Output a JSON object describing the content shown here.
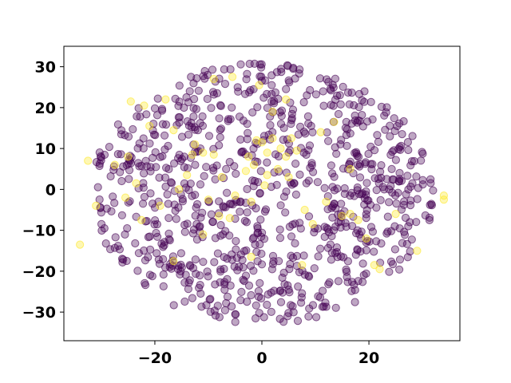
{
  "chart_data": {
    "type": "scatter",
    "title": "",
    "xlabel": "",
    "ylabel": "",
    "xlim": [
      -37,
      37
    ],
    "ylim": [
      -37,
      35
    ],
    "x_ticks": [
      -20,
      0,
      20
    ],
    "x_tick_labels": [
      "−20",
      "0",
      "20"
    ],
    "y_ticks": [
      -30,
      -20,
      -10,
      0,
      10,
      20,
      30
    ],
    "y_tick_labels": [
      "−30",
      "−20",
      "−10",
      "0",
      "10",
      "20",
      "30"
    ],
    "grid": false,
    "legend": "none",
    "colors": {
      "majority": "#440154",
      "minority": "#fde725"
    },
    "marker_opacity": 0.35,
    "series": [
      {
        "color": "#fde725",
        "points": [
          [
            -34.0,
            -13.5
          ],
          [
            -32.5,
            7.0
          ],
          [
            -31.0,
            -4.0
          ],
          [
            -27.5,
            6.0
          ],
          [
            -25.5,
            -2.0
          ],
          [
            -24.5,
            21.5
          ],
          [
            -22.0,
            20.5
          ],
          [
            -21.0,
            15.5
          ],
          [
            -23.5,
            1.5
          ],
          [
            -22.5,
            -7.5
          ],
          [
            -19.0,
            -4.0
          ],
          [
            -16.5,
            14.5
          ],
          [
            -14.0,
            3.5
          ],
          [
            -13.0,
            8.5
          ],
          [
            -11.0,
            9.0
          ],
          [
            -9.0,
            8.5
          ],
          [
            -10.0,
            -2.5
          ],
          [
            -8.0,
            -6.5
          ],
          [
            -6.0,
            -7.0
          ],
          [
            -7.5,
            3.0
          ],
          [
            -5.0,
            -1.5
          ],
          [
            -3.0,
            4.5
          ],
          [
            -2.5,
            8.0
          ],
          [
            -1.0,
            12.0
          ],
          [
            0.0,
            11.5
          ],
          [
            1.0,
            9.0
          ],
          [
            2.0,
            12.5
          ],
          [
            3.5,
            10.0
          ],
          [
            4.5,
            8.0
          ],
          [
            5.5,
            12.5
          ],
          [
            6.5,
            9.5
          ],
          [
            3.0,
            5.0
          ],
          [
            1.0,
            3.5
          ],
          [
            -1.5,
            6.0
          ],
          [
            0.5,
            1.0
          ],
          [
            8.0,
            -5.0
          ],
          [
            11.0,
            14.0
          ],
          [
            13.5,
            16.5
          ],
          [
            12.0,
            -3.0
          ],
          [
            15.0,
            -6.5
          ],
          [
            16.5,
            -6.0
          ],
          [
            18.0,
            -7.5
          ],
          [
            19.5,
            -12.0
          ],
          [
            16.5,
            5.0
          ],
          [
            21.0,
            -18.5
          ],
          [
            22.0,
            -19.5
          ],
          [
            25.0,
            -6.0
          ],
          [
            29.0,
            -15.0
          ],
          [
            34.0,
            -1.5
          ],
          [
            34.0,
            -2.5
          ],
          [
            -12.5,
            11.0
          ],
          [
            -16.5,
            -17.5
          ],
          [
            -11.0,
            -11.0
          ],
          [
            -2.0,
            -16.5
          ],
          [
            4.5,
            22.0
          ],
          [
            -9.0,
            27.0
          ],
          [
            -5.5,
            27.5
          ],
          [
            2.0,
            19.0
          ],
          [
            -0.5,
            25.5
          ],
          [
            7.5,
            -18.5
          ],
          [
            -25.0,
            8.0
          ],
          [
            -18.0,
            22.0
          ],
          [
            9.5,
            -8.5
          ],
          [
            -2.0,
            -3.0
          ],
          [
            5.0,
            3.0
          ],
          [
            -15.5,
            0.0
          ]
        ]
      }
    ]
  }
}
